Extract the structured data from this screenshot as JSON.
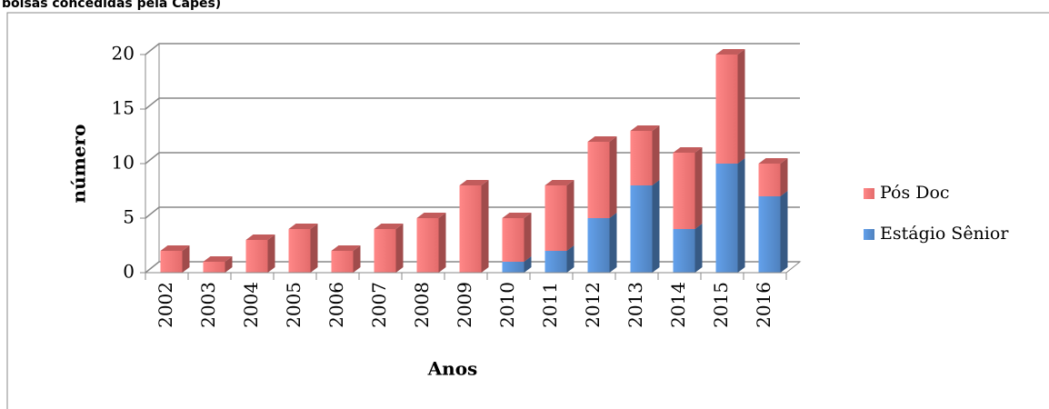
{
  "chart_data": {
    "type": "stacked_bar_3d",
    "title": "bolsas concedidas pela Capes)",
    "x_label": "Anos",
    "y_label": "número",
    "categories": [
      "2002",
      "2003",
      "2004",
      "2005",
      "2006",
      "2007",
      "2008",
      "2009",
      "2010",
      "2011",
      "2012",
      "2013",
      "2014",
      "2015",
      "2016"
    ],
    "series": [
      {
        "name": "Estágio Sênior",
        "color": "#4f81bd",
        "values": [
          0,
          0,
          0,
          0,
          0,
          0,
          0,
          0,
          1,
          2,
          5,
          8,
          4,
          10,
          7
        ]
      },
      {
        "name": "Pós Doc",
        "color": "#e46c6c",
        "values": [
          2,
          1,
          3,
          4,
          2,
          4,
          5,
          8,
          4,
          6,
          7,
          5,
          7,
          10,
          3
        ]
      }
    ],
    "ylim": [
      0,
      20
    ],
    "yticks": [
      0,
      5,
      10,
      15,
      20
    ],
    "grid": true,
    "legend": "right"
  }
}
